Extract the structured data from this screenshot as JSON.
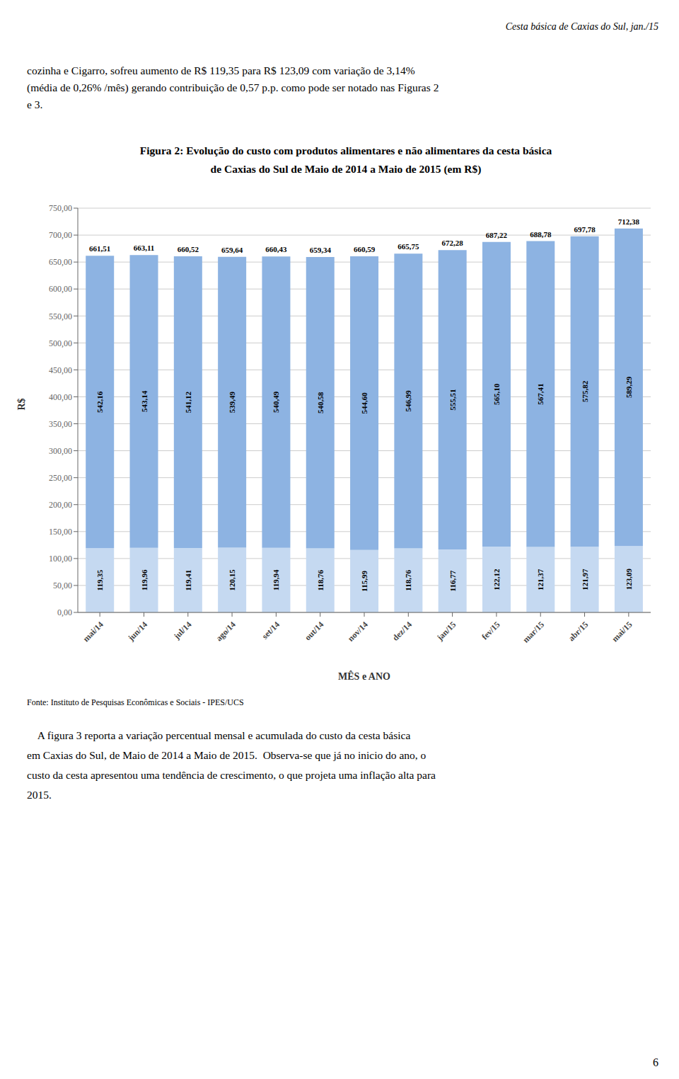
{
  "chart_data": {
    "type": "bar",
    "title": [
      "Figura 2: Evolução do custo com produtos alimentares e não alimentares da cesta básica",
      "de Caxias do Sul de Maio de 2014 a Maio de 2015 (em R$)"
    ],
    "xlabel": "MÊS e ANO",
    "ylabel": "R$",
    "categories": [
      "mai/14",
      "jun/14",
      "jul/14",
      "ago/14",
      "set/14",
      "out/14",
      "nov/14",
      "dez/14",
      "jan/15",
      "fev/15",
      "mar/15",
      "abr/15",
      "mai/15"
    ],
    "series": [
      {
        "color": "#c5d9f1",
        "values": [
          119.35,
          119.96,
          119.41,
          120.15,
          119.94,
          118.76,
          115.99,
          118.76,
          116.77,
          122.12,
          121.37,
          121.97,
          123.09
        ],
        "value_labels": [
          "119,35",
          "119,96",
          "119,41",
          "120,15",
          "119,94",
          "118,76",
          "115,99",
          "118,76",
          "116,77",
          "122,12",
          "121,37",
          "121,97",
          "123,09"
        ]
      },
      {
        "color": "#8db3e2",
        "values": [
          542.16,
          543.14,
          541.12,
          539.49,
          540.49,
          540.58,
          544.6,
          546.99,
          555.51,
          565.1,
          567.41,
          575.82,
          589.29
        ],
        "value_labels": [
          "542,16",
          "543,14",
          "541,12",
          "539,49",
          "540,49",
          "540,58",
          "544,60",
          "546,99",
          "555,51",
          "565,10",
          "567,41",
          "575,82",
          "589,29"
        ]
      }
    ],
    "totals": [
      661.51,
      663.11,
      660.52,
      659.64,
      660.43,
      659.34,
      660.59,
      665.75,
      672.28,
      687.22,
      688.78,
      697.78,
      712.38
    ],
    "total_labels": [
      "661,51",
      "663,11",
      "660,52",
      "659,64",
      "660,43",
      "659,34",
      "660,59",
      "665,75",
      "672,28",
      "687,22",
      "688,78",
      "697,78",
      "712,38"
    ],
    "stacked": true,
    "data_labels": true,
    "grid": true,
    "ylim": [
      0,
      750
    ],
    "yticks": [
      {
        "value": 0,
        "label": "0,00"
      },
      {
        "value": 50,
        "label": "50,00"
      },
      {
        "value": 100,
        "label": "100,00"
      },
      {
        "value": 150,
        "label": "150,00"
      },
      {
        "value": 200,
        "label": "200,00"
      },
      {
        "value": 250,
        "label": "250,00"
      },
      {
        "value": 300,
        "label": "300,00"
      },
      {
        "value": 350,
        "label": "350,00"
      },
      {
        "value": 400,
        "label": "400,00"
      },
      {
        "value": 450,
        "label": "450,00"
      },
      {
        "value": 500,
        "label": "500,00"
      },
      {
        "value": 550,
        "label": "550,00"
      },
      {
        "value": 600,
        "label": "600,00"
      },
      {
        "value": 650,
        "label": "650,00"
      },
      {
        "value": 700,
        "label": "700,00"
      },
      {
        "value": 750,
        "label": "750,00"
      }
    ]
  },
  "page_texts": {
    "header": "Cesta básica de Caxias do Sul, jan./15",
    "body": [
      "cozinha e Cigarro, sofreu aumento de R$ 119,35 para R$ 123,09 com variação de 3,14%",
      "(média de 0,26% /mês) gerando contribuição de 0,57 p.p. como pode ser notado nas Figuras 2",
      "e 3."
    ],
    "source": "Fonte: Instituto de Pesquisas Econômicas e Sociais - IPES/UCS",
    "footer": [
      "    A figura 3 reporta a variação percentual mensal e acumulada do custo da cesta básica",
      "em Caxias do Sul, de Maio de 2014 a Maio de 2015.  Observa-se que já no inicio do ano, o",
      "custo da cesta apresentou uma tendência de crescimento, o que projeta uma inflação alta para",
      "2015."
    ],
    "page_number": "6"
  }
}
